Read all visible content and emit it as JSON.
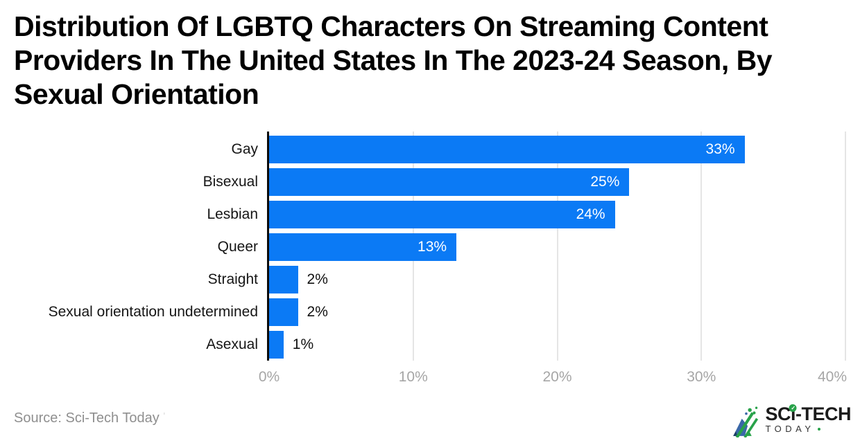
{
  "title": {
    "lines": [
      "Distribution Of LGBTQ Characters On Streaming Content",
      "Providers In The United States In The 2023-24 Season, By",
      "Sexual Orientation"
    ]
  },
  "chart_data": {
    "type": "bar",
    "orientation": "horizontal",
    "title": "Distribution Of LGBTQ Characters On Streaming Content Providers In The United States In The 2023-24 Season, By Sexual Orientation",
    "categories": [
      "Gay",
      "Bisexual",
      "Lesbian",
      "Queer",
      "Straight",
      "Sexual orientation undetermined",
      "Asexual"
    ],
    "values": [
      33,
      25,
      24,
      13,
      2,
      2,
      1
    ],
    "value_labels": [
      "33%",
      "25%",
      "24%",
      "13%",
      "2%",
      "2%",
      "1%"
    ],
    "x_tick_labels": [
      "0%",
      "10%",
      "20%",
      "30%",
      "40%"
    ],
    "x_tick_values": [
      0,
      10,
      20,
      30,
      40
    ],
    "xlim": [
      0,
      40
    ],
    "grid": true,
    "legend": false,
    "bar_color": "#0b7af5",
    "inside_label_min_value": 13,
    "inside_label_color": "#ffffff",
    "outside_label_color": "#111111",
    "gridline_color": "#e5e5e5",
    "axis_line_color": "#0b0b0b",
    "tick_label_color": "#a6a6a6"
  },
  "footer": {
    "source": "Source: Sci-Tech Today",
    "faint_mark": "'"
  },
  "logo": {
    "brand_prefix": "SC",
    "brand_i": "i",
    "brand_suffix": "-TECH",
    "subtext": "TODAY",
    "check_icon": "✓",
    "green": "#28a24a",
    "blue": "#3a67a8",
    "navy": "#1e3f66"
  }
}
